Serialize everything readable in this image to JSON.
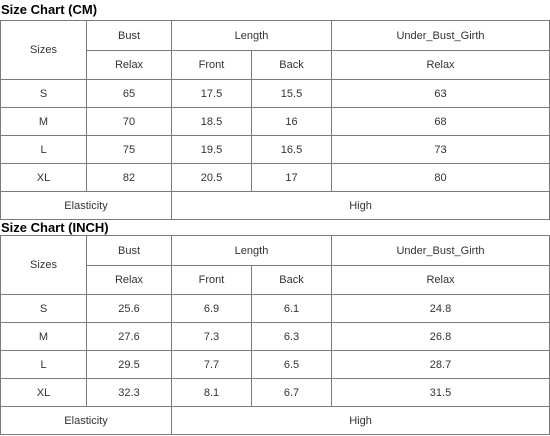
{
  "tables": [
    {
      "title": "Size Chart (CM)",
      "header": {
        "sizes": "Sizes",
        "groups": [
          "Bust",
          "Length",
          "Under_Bust_Girth"
        ],
        "sub": [
          "Relax",
          "Front",
          "Back",
          "Relax"
        ]
      },
      "rows": [
        [
          "S",
          65,
          17.5,
          15.5,
          63
        ],
        [
          "M",
          70,
          18.5,
          16,
          68
        ],
        [
          "L",
          75,
          19.5,
          16.5,
          73
        ],
        [
          "XL",
          82,
          20.5,
          17,
          80
        ]
      ],
      "footer": {
        "label": "Elasticity",
        "value": "High"
      }
    },
    {
      "title": "Size Chart (INCH)",
      "header": {
        "sizes": "Sizes",
        "groups": [
          "Bust",
          "Length",
          "Under_Bust_Girth"
        ],
        "sub": [
          "Relax",
          "Front",
          "Back",
          "Relax"
        ]
      },
      "rows": [
        [
          "S",
          25.6,
          6.9,
          6.1,
          24.8
        ],
        [
          "M",
          27.6,
          7.3,
          6.3,
          26.8
        ],
        [
          "L",
          29.5,
          7.7,
          6.5,
          28.7
        ],
        [
          "XL",
          32.3,
          8.1,
          6.7,
          31.5
        ]
      ],
      "footer": {
        "label": "Elasticity",
        "value": "High"
      }
    }
  ]
}
